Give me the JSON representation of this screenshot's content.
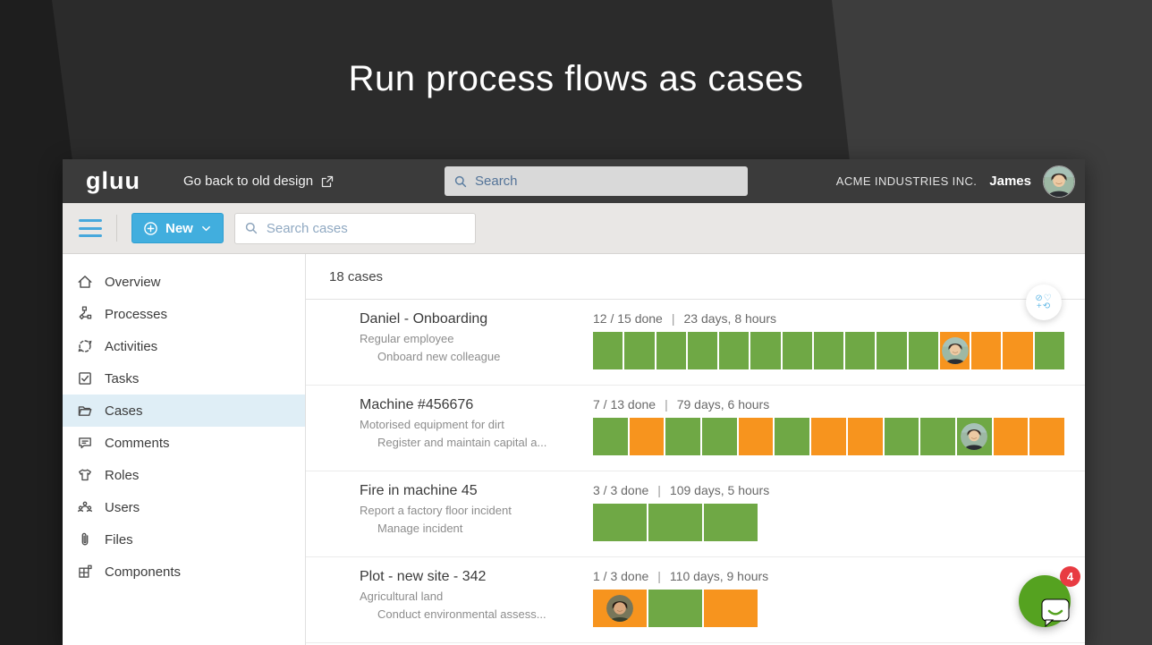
{
  "slide": {
    "title": "Run process flows as cases"
  },
  "app_header": {
    "logo": "gluu",
    "back_link": "Go back to old design",
    "back_link_icon": "external-link-icon",
    "search_placeholder": "Search",
    "company": "ACME INDUSTRIES INC.",
    "user_name": "James",
    "user_avatar": "james"
  },
  "toolbar": {
    "menu_icon": "hamburger-icon",
    "new_label": "New",
    "new_icons": [
      "circle-plus-icon",
      "chevron-down-icon"
    ],
    "search_placeholder": "Search cases"
  },
  "sidebar": {
    "selected": "Cases",
    "items": [
      {
        "label": "Overview",
        "icon": "home-icon"
      },
      {
        "label": "Processes",
        "icon": "process-icon"
      },
      {
        "label": "Activities",
        "icon": "activities-icon"
      },
      {
        "label": "Tasks",
        "icon": "tasks-icon"
      },
      {
        "label": "Cases",
        "icon": "folder-icon"
      },
      {
        "label": "Comments",
        "icon": "comments-icon"
      },
      {
        "label": "Roles",
        "icon": "roles-icon"
      },
      {
        "label": "Users",
        "icon": "users-icon"
      },
      {
        "label": "Files",
        "icon": "paperclip-icon"
      },
      {
        "label": "Components",
        "icon": "components-icon"
      }
    ]
  },
  "main": {
    "count_label": "18 cases",
    "stats_separator": "|",
    "filter_button_icons": [
      "block-icon",
      "heart-icon",
      "plus-icon",
      "refresh-icon"
    ],
    "cases": [
      {
        "title": "Daniel - Onboarding",
        "subtitle": "Regular employee",
        "process": "Onboard new colleague",
        "done_label": "12 / 15 done",
        "duration": "23 days, 8 hours",
        "segments": [
          {
            "state": "done"
          },
          {
            "state": "done"
          },
          {
            "state": "done"
          },
          {
            "state": "done"
          },
          {
            "state": "done"
          },
          {
            "state": "done"
          },
          {
            "state": "done"
          },
          {
            "state": "done"
          },
          {
            "state": "done"
          },
          {
            "state": "done"
          },
          {
            "state": "done"
          },
          {
            "state": "pending",
            "avatar": "james"
          },
          {
            "state": "pending"
          },
          {
            "state": "pending"
          },
          {
            "state": "done"
          }
        ]
      },
      {
        "title": "Machine #456676",
        "subtitle": "Motorised equipment for dirt",
        "process": "Register and maintain capital a...",
        "done_label": "7 / 13 done",
        "duration": "79 days, 6 hours",
        "segments": [
          {
            "state": "done"
          },
          {
            "state": "pending"
          },
          {
            "state": "done"
          },
          {
            "state": "done"
          },
          {
            "state": "pending"
          },
          {
            "state": "done"
          },
          {
            "state": "pending"
          },
          {
            "state": "pending"
          },
          {
            "state": "done"
          },
          {
            "state": "done"
          },
          {
            "state": "done",
            "avatar": "james"
          },
          {
            "state": "pending"
          },
          {
            "state": "pending"
          }
        ]
      },
      {
        "title": "Fire in machine 45",
        "subtitle": "Report a factory floor incident",
        "process": "Manage incident",
        "done_label": "3 / 3 done",
        "duration": "109 days, 5 hours",
        "segments": [
          {
            "state": "done"
          },
          {
            "state": "done"
          },
          {
            "state": "done"
          }
        ]
      },
      {
        "title": "Plot - new site - 342",
        "subtitle": "Agricultural land",
        "process": "Conduct environmental assess...",
        "done_label": "1 / 3 done",
        "duration": "110 days, 9 hours",
        "segments": [
          {
            "state": "pending",
            "avatar": "plot-owner"
          },
          {
            "state": "done"
          },
          {
            "state": "pending"
          }
        ]
      }
    ]
  },
  "chat": {
    "badge": "4",
    "icon": "chat-bubble-icon"
  },
  "colors": {
    "done_green": "#6fa845",
    "pending_orange": "#f7941e",
    "accent_blue": "#41aede",
    "selected_item_bg": "#dfeef6",
    "chat_green": "#55a220",
    "badge_red": "#e83b42"
  }
}
